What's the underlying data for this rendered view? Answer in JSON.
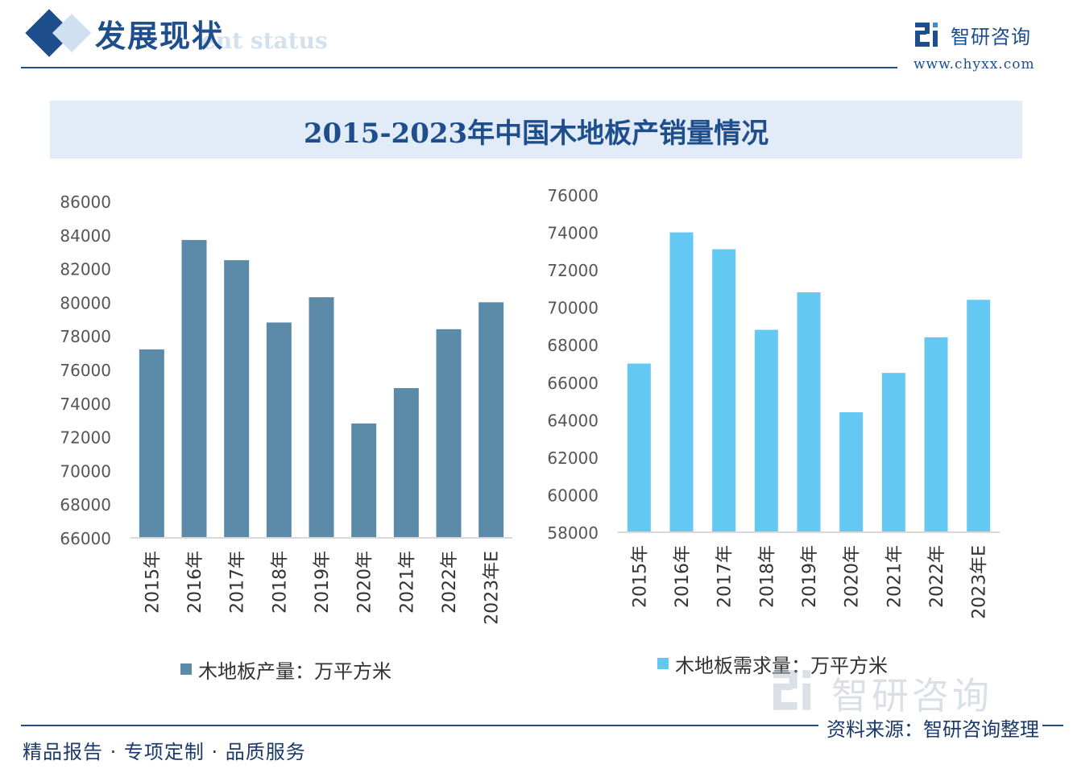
{
  "header": {
    "title": "发展现状",
    "subtitle": "ent status"
  },
  "brand": {
    "name": "智研咨询",
    "url": "www.chyxx.com",
    "logo_icon": "chyxx-logo-icon"
  },
  "colors": {
    "brand": "#1f4e8c",
    "production_bar": "#5b8ba8",
    "demand_bar": "#63c9f2"
  },
  "chart_data": [
    {
      "type": "bar",
      "title": "2015-2023年中国木地板产销量情况",
      "categories": [
        "2015年",
        "2016年",
        "2017年",
        "2018年",
        "2019年",
        "2020年",
        "2021年",
        "2022年",
        "2023年E"
      ],
      "series": [
        {
          "name": "木地板产量：万平方米",
          "values": [
            77200,
            83700,
            82500,
            78800,
            80300,
            72800,
            74900,
            78400,
            80000
          ]
        }
      ],
      "ylim": [
        66000,
        86000
      ],
      "yticks": [
        66000,
        68000,
        70000,
        72000,
        74000,
        76000,
        78000,
        80000,
        82000,
        84000,
        86000
      ],
      "legend": "bottom",
      "grid": false
    },
    {
      "type": "bar",
      "title": "2015-2023年中国木地板产销量情况",
      "categories": [
        "2015年",
        "2016年",
        "2017年",
        "2018年",
        "2019年",
        "2020年",
        "2021年",
        "2022年",
        "2023年E"
      ],
      "series": [
        {
          "name": "木地板需求量：万平方米",
          "values": [
            67000,
            74000,
            73100,
            68800,
            70800,
            64400,
            66500,
            68400,
            70400
          ]
        }
      ],
      "ylim": [
        58000,
        76000
      ],
      "yticks": [
        58000,
        60000,
        62000,
        64000,
        66000,
        68000,
        70000,
        72000,
        74000,
        76000
      ],
      "legend": "bottom",
      "grid": false
    }
  ],
  "footer": {
    "left": "精品报告 · 专项定制 · 品质服务",
    "source": "资料来源：智研咨询整理"
  },
  "watermark": {
    "text": "智研咨询"
  }
}
